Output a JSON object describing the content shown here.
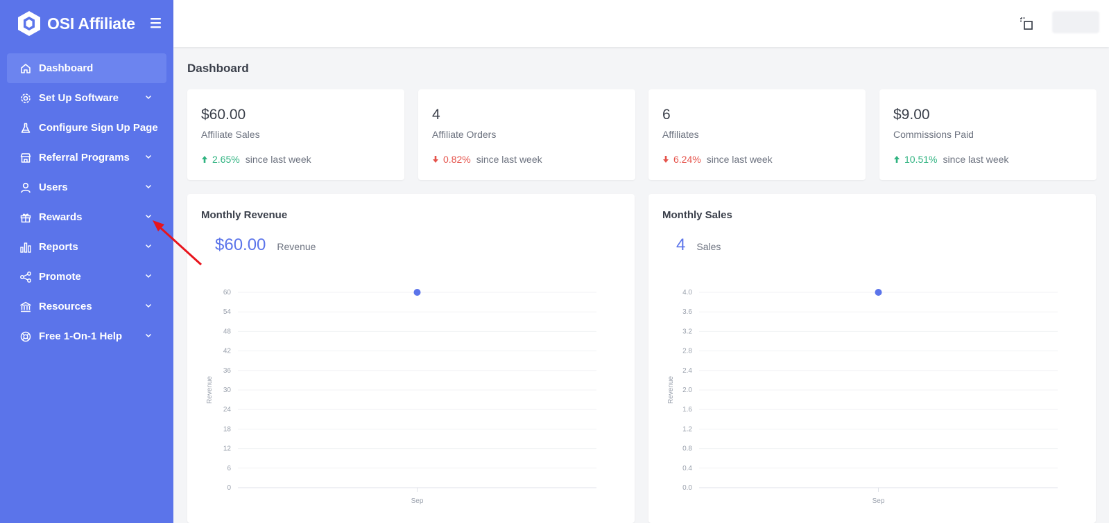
{
  "app": {
    "name": "OSI Affiliate"
  },
  "colors": {
    "sidebar": "#5b74ea",
    "accent": "#5b74ea",
    "positive": "#2fb380",
    "negative": "#e5534b",
    "annotation": "#e8141c"
  },
  "sidebar": {
    "items": [
      {
        "label": "Dashboard",
        "icon": "home-icon",
        "active": true,
        "has_chevron": false
      },
      {
        "label": "Set Up Software",
        "icon": "gear-icon",
        "has_chevron": true
      },
      {
        "label": "Configure Sign Up Page",
        "icon": "flask-icon",
        "has_chevron": false
      },
      {
        "label": "Referral Programs",
        "icon": "store-icon",
        "has_chevron": true
      },
      {
        "label": "Users",
        "icon": "user-icon",
        "has_chevron": true
      },
      {
        "label": "Rewards",
        "icon": "gift-icon",
        "has_chevron": true
      },
      {
        "label": "Reports",
        "icon": "bar-chart-icon",
        "has_chevron": true
      },
      {
        "label": "Promote",
        "icon": "share-icon",
        "has_chevron": true
      },
      {
        "label": "Resources",
        "icon": "bank-icon",
        "has_chevron": true
      },
      {
        "label": "Free 1-On-1 Help",
        "icon": "lifebuoy-icon",
        "has_chevron": true
      }
    ]
  },
  "page": {
    "title": "Dashboard"
  },
  "stats": [
    {
      "value": "$60.00",
      "label": "Affiliate Sales",
      "change": "2.65%",
      "direction": "up",
      "since": "since last week"
    },
    {
      "value": "4",
      "label": "Affiliate Orders",
      "change": "0.82%",
      "direction": "down",
      "since": "since last week"
    },
    {
      "value": "6",
      "label": "Affiliates",
      "change": "6.24%",
      "direction": "down",
      "since": "since last week"
    },
    {
      "value": "$9.00",
      "label": "Commissions Paid",
      "change": "10.51%",
      "direction": "up",
      "since": "since last week"
    }
  ],
  "chart_data": [
    {
      "type": "scatter",
      "title": "Monthly Revenue",
      "headline_value": "$60.00",
      "headline_label": "Revenue",
      "ylabel": "Revenue",
      "xlabel": "",
      "categories": [
        "Sep"
      ],
      "values": [
        60
      ],
      "ylim": [
        0,
        60
      ],
      "yticks": [
        "0",
        "6",
        "12",
        "18",
        "24",
        "30",
        "36",
        "42",
        "48",
        "54",
        "60"
      ],
      "grid": true
    },
    {
      "type": "scatter",
      "title": "Monthly Sales",
      "headline_value": "4",
      "headline_label": "Sales",
      "ylabel": "Revenue",
      "xlabel": "",
      "categories": [
        "Sep"
      ],
      "values": [
        4
      ],
      "ylim": [
        0,
        4
      ],
      "yticks": [
        "0.0",
        "0.4",
        "0.8",
        "1.2",
        "1.6",
        "2.0",
        "2.4",
        "2.8",
        "3.2",
        "3.6",
        "4.0"
      ],
      "grid": true
    }
  ]
}
